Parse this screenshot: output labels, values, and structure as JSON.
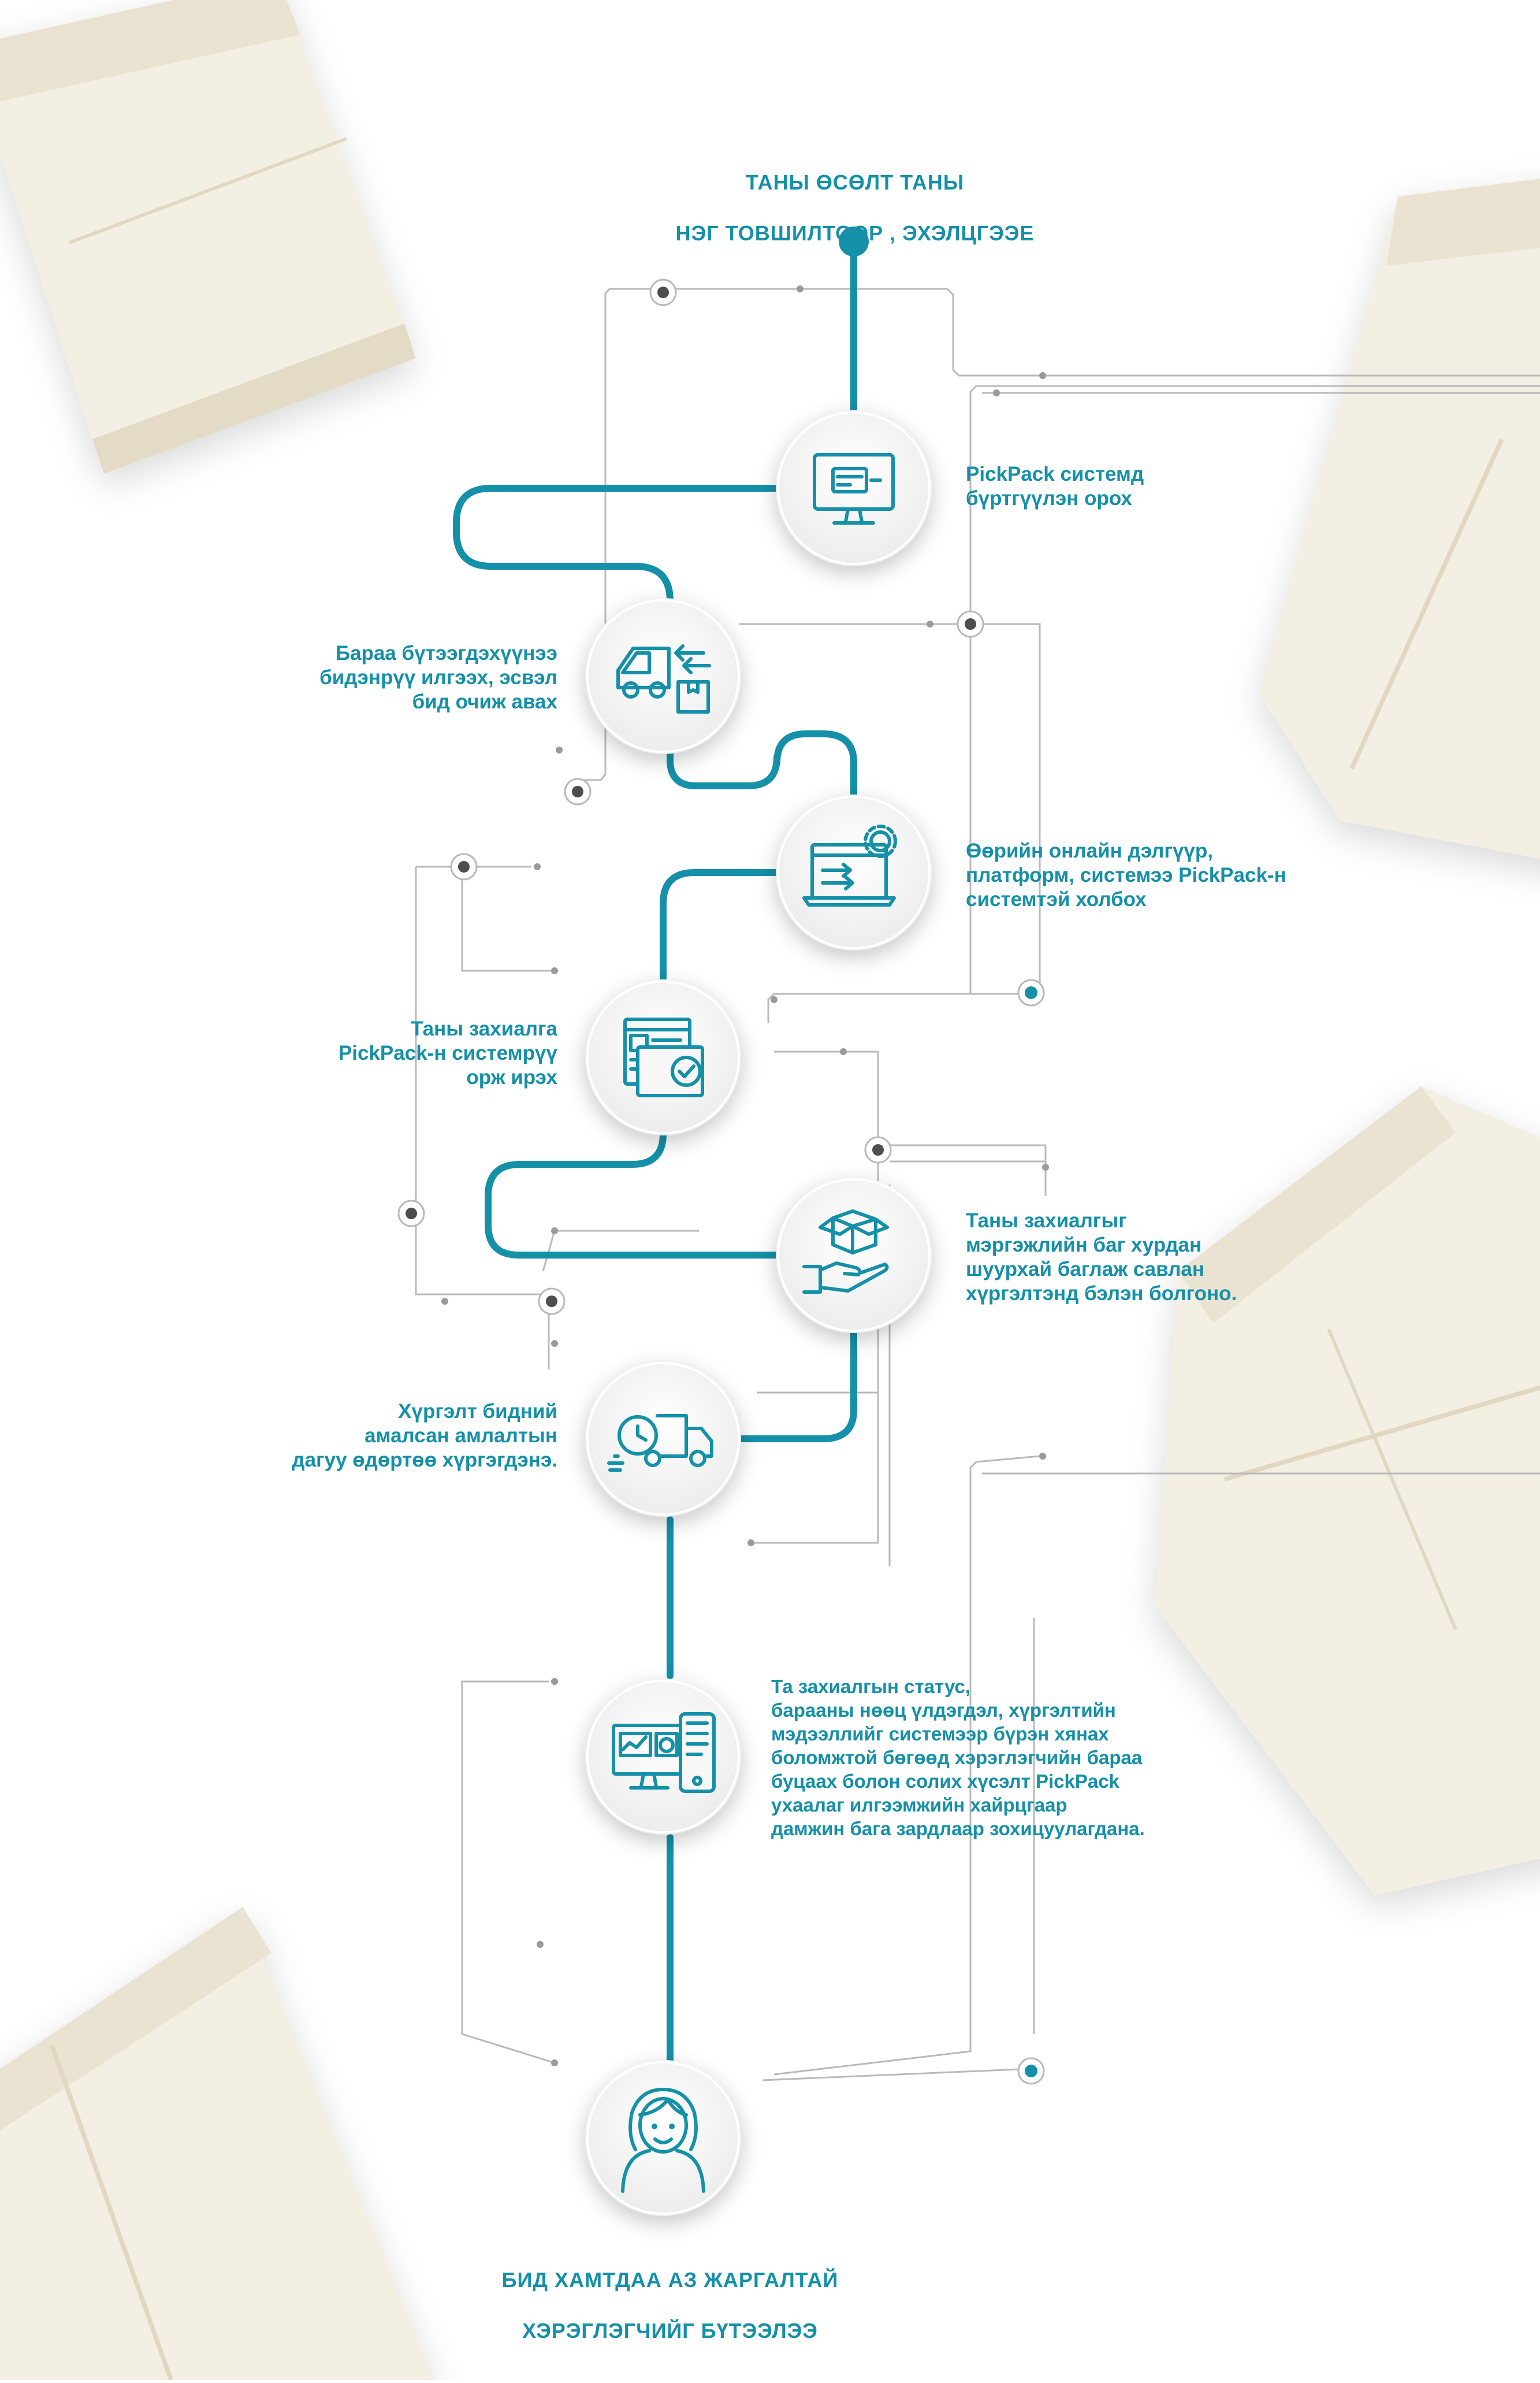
{
  "colors": {
    "accent": "#1490a8",
    "connector_gray": "#b9b9b9",
    "background": "#ffffff",
    "box_cardboard": "#f3eee2"
  },
  "header": {
    "line1": "ТАНЫ ӨСӨЛТ ТАНЫ",
    "line2": "НЭГ ТОВШИЛТООР , ЭХЭЛЦГЭЭЕ"
  },
  "steps": [
    {
      "icon": "computer-card-icon",
      "text": "PickPack системд\nбүртгүүлэн орох"
    },
    {
      "icon": "van-delivery-icon",
      "text": "Бараа бүтээгдэхүүнээ\nбидэнрүү илгээх, эсвэл\nбид очиж авах"
    },
    {
      "icon": "laptop-gear-icon",
      "text": "Өөрийн онлайн дэлгүүр,\nплатформ, системээ PickPack-н\nсистемтэй холбох"
    },
    {
      "icon": "order-checklist-icon",
      "text": "Таны захиалга\nPickPack-н системрүү\nорж ирэх"
    },
    {
      "icon": "hand-box-icon",
      "text": "Таны захиалгыг\nмэргэжлийн баг хурдан\nшуурхай баглаж савлан\nхүргэлтэнд бэлэн болгоно."
    },
    {
      "icon": "truck-clock-icon",
      "text": "Хүргэлт бидний\nамалсан амлалтын\nдагуу өдөртөө хүргэгдэнэ."
    },
    {
      "icon": "monitor-dashboard-icon",
      "text": "Та захиалгын статус,\nбарааны нөөц үлдэгдэл, хүргэлтийн\nмэдээллийг системээр бүрэн хянах\nболомжтой бөгөөд хэрэглэгчийн бараа\nбуцаах болон солих хүсэлт PickPack\nухаалаг илгээмжийн хайрцгаар\nдамжин бага зардлаар зохицуулагдана."
    },
    {
      "icon": "smiling-person-icon",
      "text": ""
    }
  ],
  "footer": {
    "line1": "БИД ХАМТДАА АЗ ЖАРГАЛТАЙ",
    "line2": "ХЭРЭГЛЭГЧИЙГ БҮТЭЭЛЭЭ"
  }
}
